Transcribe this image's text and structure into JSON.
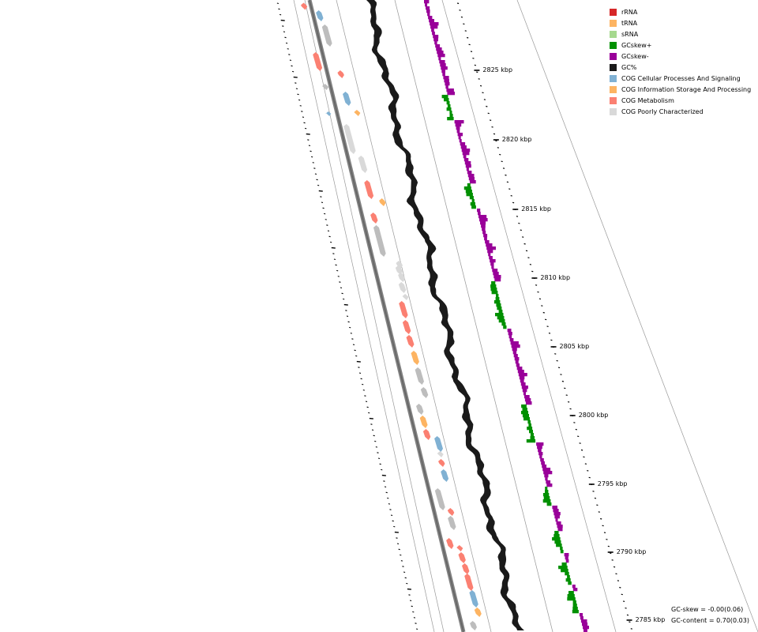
{
  "legend": [
    {
      "label": "rRNA",
      "color": "#d62728"
    },
    {
      "label": "tRNA",
      "color": "#fdb462"
    },
    {
      "label": "sRNA",
      "color": "#a6d98f"
    },
    {
      "label": "GCskew+",
      "color": "#009000"
    },
    {
      "label": "GCskew-",
      "color": "#990099"
    },
    {
      "label": "GC%",
      "color": "#1a1a1a"
    },
    {
      "label": "COG Cellular Processes And Signaling",
      "color": "#80b1d3"
    },
    {
      "label": "COG Information Storage And Processing",
      "color": "#fdb462"
    },
    {
      "label": "COG Metabolism",
      "color": "#fb8072"
    },
    {
      "label": "COG Poorly Characterized",
      "color": "#d9d9d9"
    }
  ],
  "scale": {
    "unit": "kbp",
    "labels": [
      "2825 kbp",
      "2820 kbp",
      "2815 kbp",
      "2810 kbp",
      "2805 kbp",
      "2800 kbp",
      "2795 kbp",
      "2790 kbp",
      "2785 kbp"
    ]
  },
  "stats": {
    "gc_skew": "GC-skew = -0.00(0.06)",
    "gc_content": "GC-content = 0.70(0.03)"
  },
  "colors": {
    "gray_feature": "#bdbdbd",
    "backbone": "#808080",
    "track_line": "#999999"
  }
}
